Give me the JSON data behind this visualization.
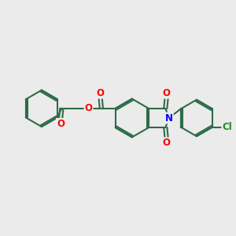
{
  "background_color": "#ebebeb",
  "bond_color": "#2d6b4a",
  "bond_width": 1.5,
  "atom_colors": {
    "O": "#ff0000",
    "N": "#0000ff",
    "Cl": "#228B22",
    "C": "#000000"
  },
  "font_size": 8.5,
  "figsize": [
    3.0,
    3.0
  ],
  "dpi": 100
}
